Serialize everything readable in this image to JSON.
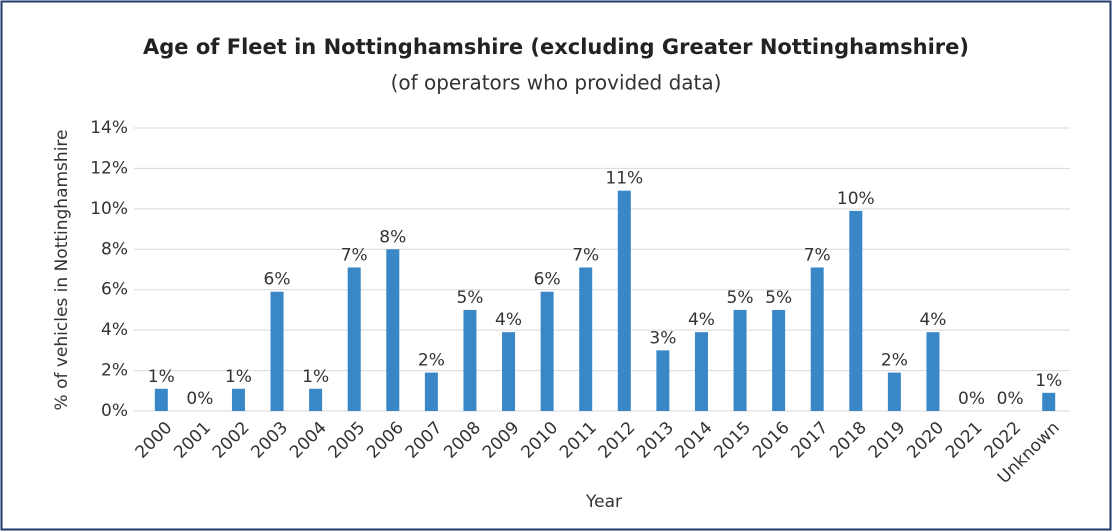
{
  "chart_data": {
    "type": "bar",
    "title": "Age of Fleet in Nottinghamshire (excluding Greater Nottinghamshire)",
    "subtitle": "(of operators who provided data)",
    "x_label": "Year",
    "y_label": "% of vehicles in Nottinghamshire",
    "categories": [
      "2000",
      "2001",
      "2002",
      "2003",
      "2004",
      "2005",
      "2006",
      "2007",
      "2008",
      "2009",
      "2010",
      "2011",
      "2012",
      "2013",
      "2014",
      "2015",
      "2016",
      "2017",
      "2018",
      "2019",
      "2020",
      "2021",
      "2022",
      "Unknown"
    ],
    "values": [
      1.1,
      0,
      1.1,
      5.9,
      1.1,
      7.1,
      8.0,
      1.9,
      5.0,
      3.9,
      5.9,
      7.1,
      10.9,
      3.0,
      3.9,
      5.0,
      5.0,
      7.1,
      9.9,
      1.9,
      3.9,
      0,
      0,
      0.9
    ],
    "value_labels": [
      "1%",
      "0%",
      "1%",
      "6%",
      "1%",
      "7%",
      "8%",
      "2%",
      "5%",
      "4%",
      "6%",
      "7%",
      "11%",
      "3%",
      "4%",
      "5%",
      "5%",
      "7%",
      "10%",
      "2%",
      "4%",
      "0%",
      "0%",
      "1%"
    ],
    "color": "#3a87c8",
    "ylim": [
      0,
      14
    ],
    "yticks": [
      {
        "value": 0,
        "label": "0%"
      },
      {
        "value": 2,
        "label": "2%"
      },
      {
        "value": 4,
        "label": "4%"
      },
      {
        "value": 6,
        "label": "6%"
      },
      {
        "value": 8,
        "label": "8%"
      },
      {
        "value": 10,
        "label": "10%"
      },
      {
        "value": 12,
        "label": "12%"
      },
      {
        "value": 14,
        "label": "14%"
      }
    ],
    "grid": true
  }
}
